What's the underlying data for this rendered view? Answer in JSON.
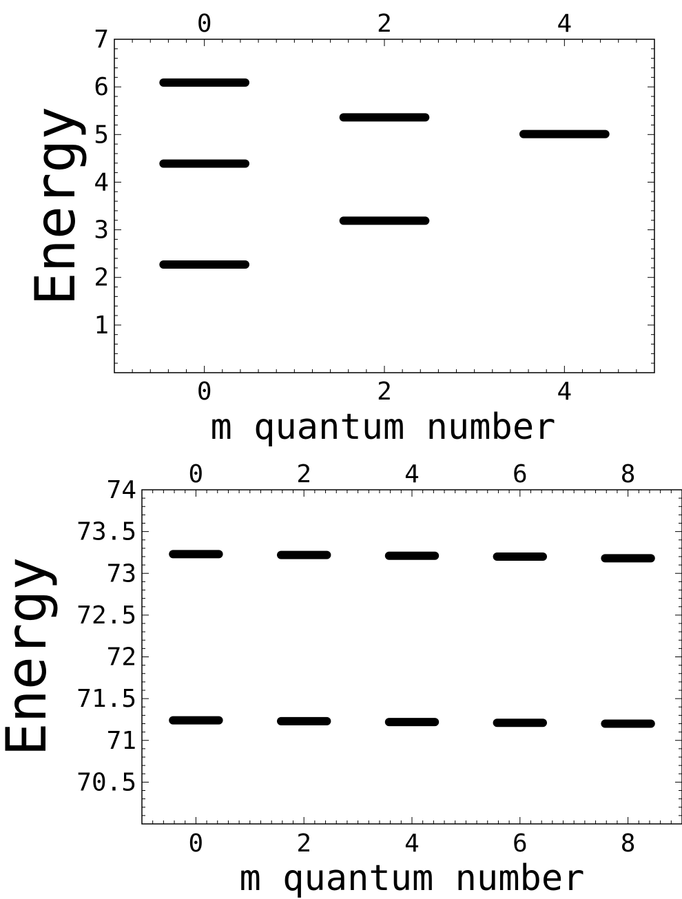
{
  "chart_data": [
    {
      "type": "scatter",
      "marker": "horizontal-level-bars",
      "title": "",
      "xlabel": "m quantum number",
      "ylabel": "Energy",
      "xlim": [
        -1,
        5
      ],
      "ylim": [
        0,
        7
      ],
      "x_ticks": [
        "0",
        "2",
        "4"
      ],
      "x_top_ticks": [
        "0",
        "2",
        "4"
      ],
      "y_ticks": [
        "1",
        "2",
        "3",
        "4",
        "5",
        "6",
        "7"
      ],
      "grid": false,
      "legend": "none",
      "series": [
        {
          "points": [
            {
              "x": 0,
              "y": 2.27
            },
            {
              "x": 0,
              "y": 4.39
            },
            {
              "x": 0,
              "y": 6.09
            },
            {
              "x": 2,
              "y": 3.19
            },
            {
              "x": 2,
              "y": 5.36
            },
            {
              "x": 4,
              "y": 5.01
            }
          ]
        }
      ],
      "colors": {
        "marks": "#000000",
        "frame": "#000000"
      }
    },
    {
      "type": "scatter",
      "marker": "horizontal-level-bars",
      "title": "",
      "xlabel": "m quantum number",
      "ylabel": "Energy",
      "xlim": [
        -1,
        9
      ],
      "ylim": [
        70,
        74
      ],
      "x_ticks": [
        "0",
        "2",
        "4",
        "6",
        "8"
      ],
      "x_top_ticks": [
        "0",
        "2",
        "4",
        "6",
        "8"
      ],
      "y_ticks": [
        "70.5",
        "71",
        "71.5",
        "72",
        "72.5",
        "73",
        "73.5",
        "74"
      ],
      "grid": false,
      "legend": "none",
      "series": [
        {
          "points": [
            {
              "x": 0,
              "y": 71.24
            },
            {
              "x": 2,
              "y": 71.23
            },
            {
              "x": 4,
              "y": 71.22
            },
            {
              "x": 6,
              "y": 71.21
            },
            {
              "x": 8,
              "y": 71.2
            },
            {
              "x": 0,
              "y": 73.23
            },
            {
              "x": 2,
              "y": 73.22
            },
            {
              "x": 4,
              "y": 73.21
            },
            {
              "x": 6,
              "y": 73.2
            },
            {
              "x": 8,
              "y": 73.18
            }
          ]
        }
      ],
      "colors": {
        "marks": "#000000",
        "frame": "#000000"
      }
    }
  ]
}
